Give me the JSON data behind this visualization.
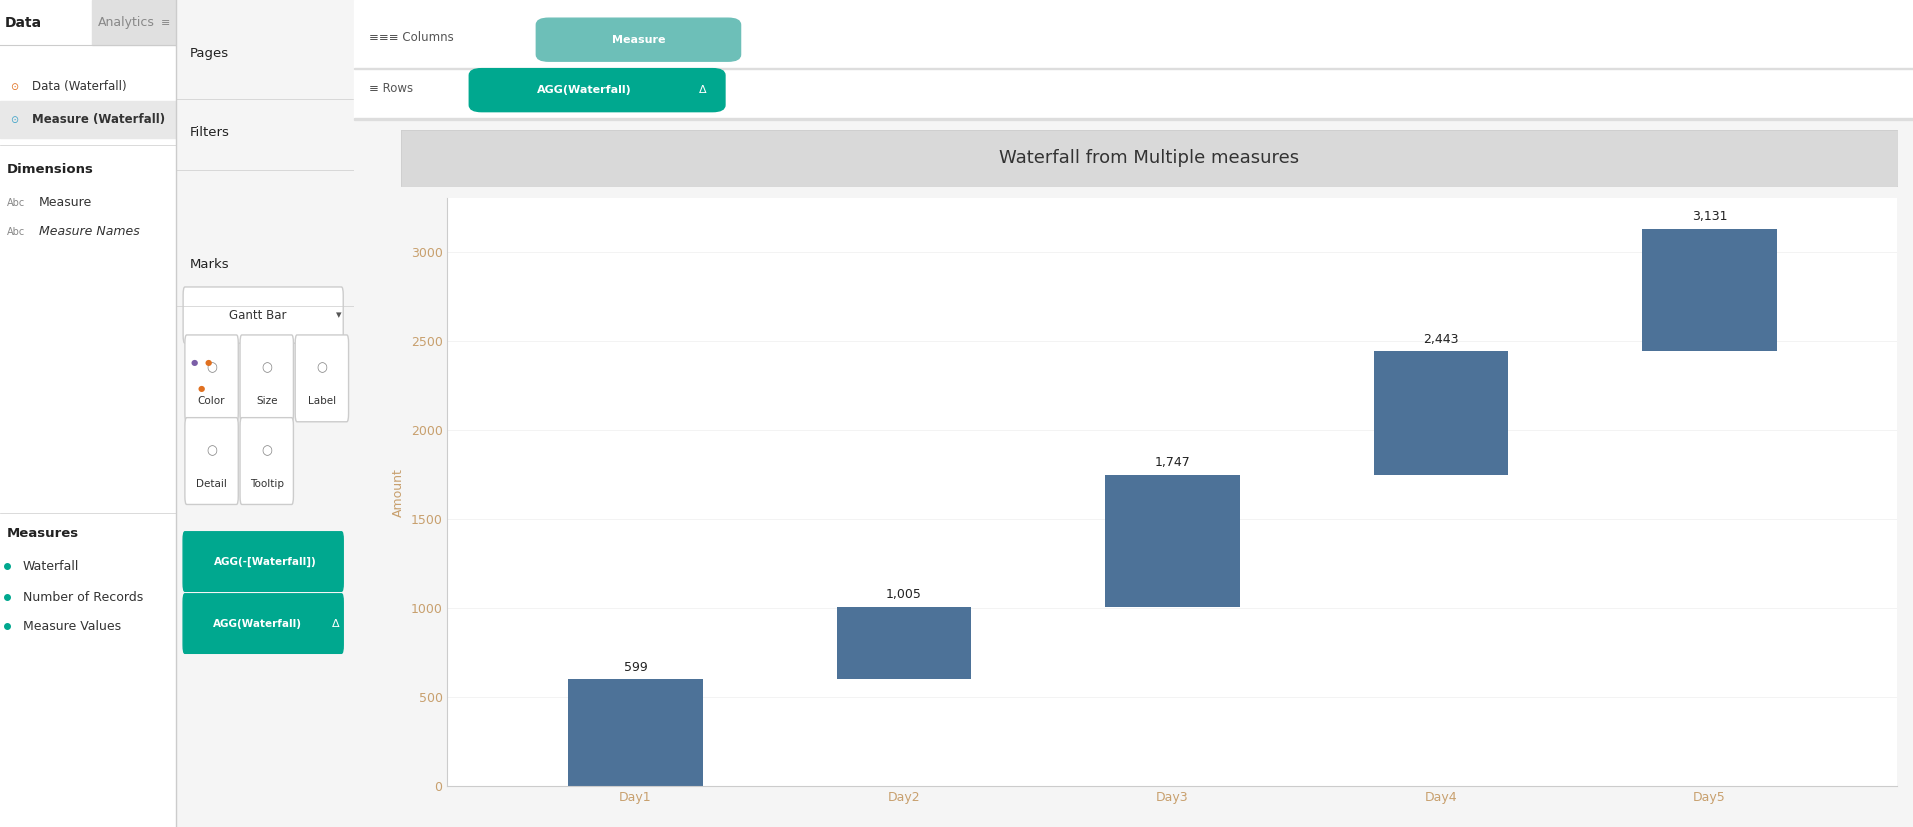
{
  "title": "Waterfall from Multiple measures",
  "chart_title_bg": "#d9d9d9",
  "categories": [
    "Day1",
    "Day2",
    "Day3",
    "Day4",
    "Day5"
  ],
  "values": [
    599,
    1005,
    1747,
    2443,
    3131
  ],
  "bar_color": "#4d7298",
  "bar_bottom": [
    0,
    599,
    1005,
    1747,
    2443
  ],
  "bar_heights": [
    599,
    406,
    742,
    696,
    688
  ],
  "ylabel": "Amount",
  "ylim": [
    0,
    3300
  ],
  "yticks": [
    0,
    500,
    1000,
    1500,
    2000,
    2500,
    3000
  ],
  "tick_color": "#c8a06e",
  "axis_label_color": "#c8a06e",
  "bg_color": "#ffffff",
  "panel_bg": "#f5f5f5",
  "green_color": "#00a88f",
  "columns_pill_color": "#6dbfb8",
  "rows_pill_color": "#00a88f",
  "data_source1": "Data (Waterfall)",
  "data_source2": "Measure (Waterfall)",
  "dim1": "Measure",
  "dim2": "Measure Names",
  "measure1": "Waterfall",
  "measure2": "Number of Records",
  "measure3": "Measure Values",
  "mark_type": "Gantt Bar",
  "shelf_columns": "Measure",
  "shelf_rows": "AGG(Waterfall)",
  "mark_row1": "AGG(-[Waterfall])",
  "mark_row2": "AGG(Waterfall)",
  "pages_label": "Pages",
  "filters_label": "Filters",
  "marks_label": "Marks"
}
